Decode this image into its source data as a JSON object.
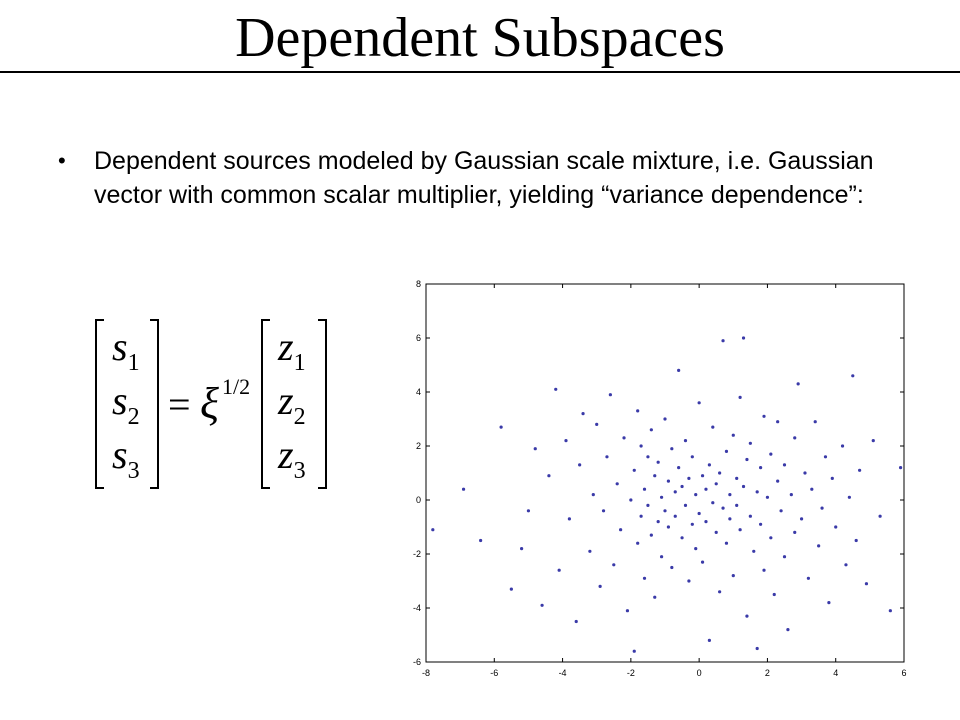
{
  "slide": {
    "title": "Dependent Subspaces",
    "bullet": "Dependent sources modeled by Gaussian scale mixture, i.e. Gaussian vector with common scalar multiplier, yielding “variance dependence”:",
    "bullet_marker": "•"
  },
  "formula": {
    "lhs": [
      "s1",
      "s2",
      "s3"
    ],
    "operator": "=",
    "scalar": "ξ",
    "exponent": "1/2",
    "rhs": [
      "z1",
      "z2",
      "z3"
    ]
  },
  "chart_data": {
    "type": "scatter",
    "title": "",
    "xlabel": "",
    "ylabel": "",
    "xlim": [
      -8,
      6
    ],
    "ylim": [
      -6,
      8
    ],
    "x_ticks": [
      -8,
      -6,
      -4,
      -2,
      0,
      2,
      4,
      6
    ],
    "y_ticks": [
      -6,
      -4,
      -2,
      0,
      2,
      4,
      6,
      8
    ],
    "grid": false,
    "marker_color": "#3a3aa8",
    "series": [
      {
        "points": [
          [
            -7.8,
            -1.1
          ],
          [
            -6.9,
            0.4
          ],
          [
            -6.4,
            -1.5
          ],
          [
            -5.8,
            2.7
          ],
          [
            -5.5,
            -3.3
          ],
          [
            -5.2,
            -1.8
          ],
          [
            -5.0,
            -0.4
          ],
          [
            -4.8,
            1.9
          ],
          [
            -4.6,
            -3.9
          ],
          [
            -4.4,
            0.9
          ],
          [
            -4.2,
            4.1
          ],
          [
            -4.1,
            -2.6
          ],
          [
            -3.9,
            2.2
          ],
          [
            -3.8,
            -0.7
          ],
          [
            -3.6,
            -4.5
          ],
          [
            -3.5,
            1.3
          ],
          [
            -3.4,
            3.2
          ],
          [
            -3.2,
            -1.9
          ],
          [
            -3.1,
            0.2
          ],
          [
            -3.0,
            2.8
          ],
          [
            -2.9,
            -3.2
          ],
          [
            -2.8,
            -0.4
          ],
          [
            -2.7,
            1.6
          ],
          [
            -2.6,
            3.9
          ],
          [
            -2.5,
            -2.4
          ],
          [
            -2.4,
            0.6
          ],
          [
            -2.3,
            -1.1
          ],
          [
            -2.2,
            2.3
          ],
          [
            -2.1,
            -4.1
          ],
          [
            -2.0,
            0.0
          ],
          [
            -1.9,
            -5.6
          ],
          [
            -1.9,
            1.1
          ],
          [
            -1.8,
            -1.6
          ],
          [
            -1.8,
            3.3
          ],
          [
            -1.7,
            -0.6
          ],
          [
            -1.7,
            2.0
          ],
          [
            -1.6,
            -2.9
          ],
          [
            -1.6,
            0.4
          ],
          [
            -1.5,
            1.6
          ],
          [
            -1.5,
            -0.2
          ],
          [
            -1.4,
            -1.3
          ],
          [
            -1.4,
            2.6
          ],
          [
            -1.3,
            0.9
          ],
          [
            -1.3,
            -3.6
          ],
          [
            -1.2,
            -0.8
          ],
          [
            -1.2,
            1.4
          ],
          [
            -1.1,
            0.1
          ],
          [
            -1.1,
            -2.1
          ],
          [
            -1.0,
            3.0
          ],
          [
            -1.0,
            -0.4
          ],
          [
            -0.9,
            0.7
          ],
          [
            -0.9,
            -1.0
          ],
          [
            -0.8,
            1.9
          ],
          [
            -0.8,
            -2.5
          ],
          [
            -0.7,
            0.3
          ],
          [
            -0.7,
            -0.6
          ],
          [
            -0.6,
            4.8
          ],
          [
            -0.6,
            1.2
          ],
          [
            -0.5,
            -1.4
          ],
          [
            -0.5,
            0.5
          ],
          [
            -0.4,
            -0.2
          ],
          [
            -0.4,
            2.2
          ],
          [
            -0.3,
            -3.0
          ],
          [
            -0.3,
            0.8
          ],
          [
            -0.2,
            -0.9
          ],
          [
            -0.2,
            1.6
          ],
          [
            -0.1,
            0.2
          ],
          [
            -0.1,
            -1.8
          ],
          [
            0.0,
            3.6
          ],
          [
            0.0,
            -0.5
          ],
          [
            0.1,
            0.9
          ],
          [
            0.1,
            -2.3
          ],
          [
            0.2,
            0.4
          ],
          [
            0.2,
            -0.8
          ],
          [
            0.3,
            1.3
          ],
          [
            0.3,
            -5.2
          ],
          [
            0.4,
            -0.1
          ],
          [
            0.4,
            2.7
          ],
          [
            0.5,
            -1.2
          ],
          [
            0.5,
            0.6
          ],
          [
            0.6,
            -3.4
          ],
          [
            0.6,
            1.0
          ],
          [
            0.7,
            -0.3
          ],
          [
            0.7,
            5.9
          ],
          [
            0.8,
            1.8
          ],
          [
            0.8,
            -1.6
          ],
          [
            0.9,
            0.2
          ],
          [
            0.9,
            -0.7
          ],
          [
            1.0,
            2.4
          ],
          [
            1.0,
            -2.8
          ],
          [
            1.1,
            0.8
          ],
          [
            1.1,
            -0.2
          ],
          [
            1.2,
            3.8
          ],
          [
            1.2,
            -1.1
          ],
          [
            1.3,
            6.0
          ],
          [
            1.3,
            0.5
          ],
          [
            1.4,
            -4.3
          ],
          [
            1.4,
            1.5
          ],
          [
            1.5,
            -0.6
          ],
          [
            1.5,
            2.1
          ],
          [
            1.6,
            -1.9
          ],
          [
            1.7,
            0.3
          ],
          [
            1.7,
            -5.5
          ],
          [
            1.8,
            1.2
          ],
          [
            1.8,
            -0.9
          ],
          [
            1.9,
            3.1
          ],
          [
            1.9,
            -2.6
          ],
          [
            2.0,
            0.1
          ],
          [
            2.1,
            1.7
          ],
          [
            2.1,
            -1.4
          ],
          [
            2.2,
            -3.5
          ],
          [
            2.3,
            0.7
          ],
          [
            2.3,
            2.9
          ],
          [
            2.4,
            -0.4
          ],
          [
            2.5,
            1.3
          ],
          [
            2.5,
            -2.1
          ],
          [
            2.6,
            -4.8
          ],
          [
            2.7,
            0.2
          ],
          [
            2.8,
            2.3
          ],
          [
            2.8,
            -1.2
          ],
          [
            2.9,
            4.3
          ],
          [
            3.0,
            -0.7
          ],
          [
            3.1,
            1.0
          ],
          [
            3.2,
            -2.9
          ],
          [
            3.3,
            0.4
          ],
          [
            3.4,
            2.9
          ],
          [
            3.5,
            -1.7
          ],
          [
            3.6,
            -0.3
          ],
          [
            3.7,
            1.6
          ],
          [
            3.8,
            -3.8
          ],
          [
            3.9,
            0.8
          ],
          [
            4.0,
            -1.0
          ],
          [
            4.2,
            2.0
          ],
          [
            4.3,
            -2.4
          ],
          [
            4.4,
            0.1
          ],
          [
            4.5,
            4.6
          ],
          [
            4.6,
            -1.5
          ],
          [
            4.7,
            1.1
          ],
          [
            4.9,
            -3.1
          ],
          [
            5.1,
            2.2
          ],
          [
            5.3,
            -0.6
          ],
          [
            5.6,
            -4.1
          ],
          [
            5.9,
            1.2
          ]
        ]
      }
    ]
  }
}
